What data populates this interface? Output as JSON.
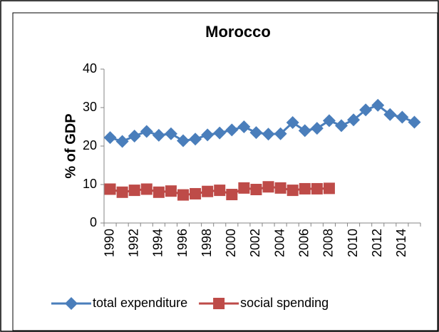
{
  "chart_data": {
    "type": "line",
    "title": "Morocco",
    "y_label": "% of GDP",
    "categories": [
      "1990",
      null,
      "1992",
      null,
      "1994",
      null,
      "1996",
      null,
      "1998",
      null,
      "2000",
      null,
      "2002",
      null,
      "2004",
      null,
      "2006",
      null,
      "2008",
      null,
      "2010",
      null,
      "2012",
      null,
      "2014",
      null
    ],
    "series": [
      {
        "name": "total expenditure",
        "color": "#4a7ebb",
        "marker": "diamond",
        "values": [
          22.2,
          21.2,
          22.6,
          23.8,
          22.8,
          23.2,
          21.4,
          21.8,
          22.9,
          23.4,
          24.2,
          25.0,
          23.5,
          23.1,
          23.2,
          26.1,
          24.0,
          24.6,
          26.6,
          25.3,
          26.8,
          29.4,
          30.6,
          28.2,
          27.5,
          26.2
        ]
      },
      {
        "name": "social spending",
        "color": "#be4b48",
        "marker": "square",
        "values": [
          8.8,
          8.0,
          8.5,
          8.8,
          8.0,
          8.3,
          7.3,
          7.6,
          8.2,
          8.5,
          7.4,
          9.1,
          8.7,
          9.4,
          9.1,
          8.5,
          8.9,
          8.9,
          9.0,
          null,
          null,
          null,
          null,
          null,
          null,
          null
        ]
      }
    ],
    "ylim": [
      0,
      40
    ],
    "yticks": [
      0,
      10,
      20,
      30,
      40
    ],
    "grid": false,
    "legend": "bottom"
  }
}
